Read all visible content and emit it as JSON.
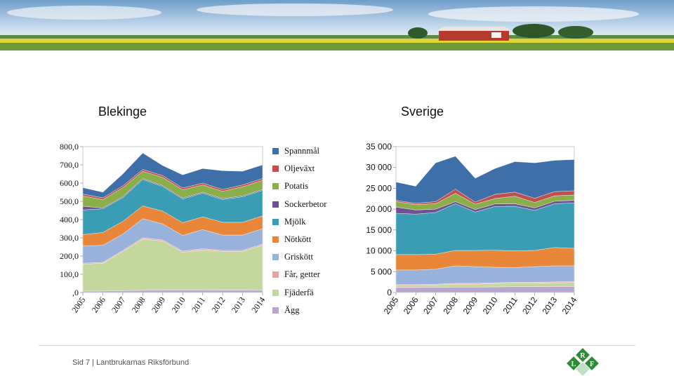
{
  "footer": {
    "page": "Sid 7",
    "separator": "|",
    "org": "Lantbrukarnas Riksförbund"
  },
  "logo": {
    "letters": [
      "R",
      "L",
      "F"
    ],
    "color": "#2e8b3a"
  },
  "colors": {
    "Spannmål": "#3f6fa8",
    "Oljeväxt": "#c0504d",
    "Potatis": "#8aae4a",
    "Sockerbetor": "#6f5195",
    "Mjölk": "#3b9db3",
    "Nötkött": "#e8873a",
    "Griskött": "#99b2dc",
    "Får, getter": "#e6a3a0",
    "Fjäderfä": "#c4d89e",
    "Ägg": "#b8a6cf"
  },
  "chart_data": [
    {
      "type": "area",
      "title": "Blekinge",
      "stacked": true,
      "x": [
        "2005",
        "2006",
        "2007",
        "2008",
        "2009",
        "2010",
        "2011",
        "2012",
        "2013",
        "2014"
      ],
      "ylim": [
        0,
        800
      ],
      "yticks": [
        "800,0",
        "700,0",
        "600,0",
        "500,0",
        "400,0",
        "300,0",
        "200,0",
        "100,0",
        ",0"
      ],
      "legend_position": "right",
      "series": [
        {
          "name": "Ägg",
          "values": [
            8,
            8,
            10,
            12,
            14,
            14,
            14,
            13,
            13,
            12
          ]
        },
        {
          "name": "Fjäderfä",
          "values": [
            148,
            152,
            215,
            282,
            268,
            207,
            220,
            212,
            212,
            248
          ]
        },
        {
          "name": "Får, getter",
          "values": [
            5,
            5,
            5,
            6,
            6,
            6,
            6,
            6,
            6,
            6
          ]
        },
        {
          "name": "Griskött",
          "values": [
            94,
            94,
            90,
            105,
            88,
            86,
            105,
            84,
            84,
            84
          ]
        },
        {
          "name": "Nötkött",
          "values": [
            63,
            70,
            70,
            70,
            70,
            70,
            70,
            70,
            70,
            70
          ]
        },
        {
          "name": "Mjölk",
          "values": [
            135,
            130,
            130,
            145,
            135,
            130,
            130,
            125,
            140,
            140
          ]
        },
        {
          "name": "Sockerbetor",
          "values": [
            20,
            5,
            5,
            5,
            5,
            5,
            5,
            5,
            5,
            5
          ]
        },
        {
          "name": "Potatis",
          "values": [
            57,
            45,
            50,
            40,
            45,
            45,
            40,
            40,
            50,
            50
          ]
        },
        {
          "name": "Oljeväxt",
          "values": [
            10,
            10,
            10,
            10,
            10,
            10,
            10,
            10,
            10,
            10
          ]
        },
        {
          "name": "Spannmål",
          "values": [
            35,
            31,
            65,
            90,
            55,
            72,
            80,
            103,
            75,
            75
          ]
        }
      ]
    },
    {
      "type": "area",
      "title": "Sverige",
      "stacked": true,
      "x": [
        "2005",
        "2006",
        "2007",
        "2008",
        "2009",
        "2010",
        "2011",
        "2012",
        "2013",
        "2014"
      ],
      "ylim": [
        0,
        35000
      ],
      "yticks": [
        "35 000",
        "30 000",
        "25 000",
        "20 000",
        "15 000",
        "10 000",
        "5 000",
        "0"
      ],
      "series": [
        {
          "name": "Ägg",
          "values": [
            1200,
            1200,
            1250,
            1300,
            1300,
            1350,
            1400,
            1400,
            1450,
            1450
          ]
        },
        {
          "name": "Fjäderfä",
          "values": [
            500,
            500,
            550,
            700,
            700,
            800,
            850,
            850,
            900,
            950
          ]
        },
        {
          "name": "Får, getter",
          "values": [
            200,
            200,
            200,
            200,
            200,
            200,
            200,
            200,
            200,
            200
          ]
        },
        {
          "name": "Griskött",
          "values": [
            3500,
            3500,
            3600,
            4200,
            4000,
            3700,
            3550,
            3750,
            3850,
            3800
          ]
        },
        {
          "name": "Nötkött",
          "values": [
            3700,
            3700,
            3600,
            3700,
            3900,
            4100,
            4000,
            3900,
            4400,
            4200
          ]
        },
        {
          "name": "Mjölk",
          "values": [
            9900,
            9700,
            10000,
            11200,
            9200,
            10500,
            10700,
            9600,
            10500,
            10900
          ]
        },
        {
          "name": "Sockerbetor",
          "values": [
            1500,
            1000,
            800,
            500,
            600,
            600,
            600,
            600,
            600,
            600
          ]
        },
        {
          "name": "Potatis",
          "values": [
            1300,
            1300,
            1300,
            2000,
            1300,
            1300,
            1800,
            1300,
            1300,
            1300
          ]
        },
        {
          "name": "Oljeväxt",
          "values": [
            300,
            300,
            500,
            1000,
            500,
            1000,
            1000,
            1000,
            1000,
            1000
          ]
        },
        {
          "name": "Spannmål",
          "values": [
            4400,
            4100,
            9300,
            7900,
            5700,
            6200,
            7300,
            8500,
            7500,
            7500
          ]
        }
      ]
    }
  ]
}
